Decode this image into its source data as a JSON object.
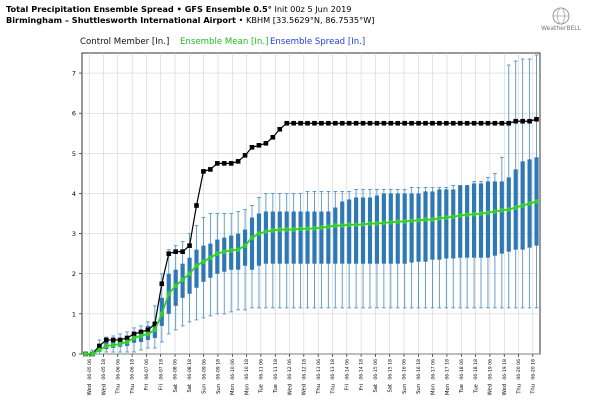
{
  "header": {
    "title_bold": "Total Precipitation Ensemble Spread • GFS Ensemble 0.5°",
    "title_init": "Init 00z 5 Jun 2019",
    "location_bold": "Birmingham – Shuttlesworth International Airport",
    "location_code": "• KBHM [33.5629°N, 86.7535°W]"
  },
  "logo": {
    "text": "WeatherBELL",
    "icon": "globe-logo-icon"
  },
  "legend": {
    "control": "Control Member [In.]",
    "mean": "Ensemble Mean [In.]",
    "spread": "Ensemble Spread [In.]"
  },
  "colors": {
    "control": "#000000",
    "mean": "#33cc33",
    "box": "#2e78b5",
    "whisker": "#5596c8",
    "grid": "#c8c8c8"
  },
  "chart_data": {
    "type": "box",
    "ylim": [
      0,
      7.5
    ],
    "yticks": [
      0,
      1,
      2,
      3,
      4,
      5,
      6,
      7
    ],
    "xticks": [
      "06-05 06",
      "06-05 18",
      "06-06 06",
      "06-06 18",
      "06-07 06",
      "06-07 18",
      "06-08 06",
      "06-08 18",
      "06-09 06",
      "06-09 18",
      "06-10 06",
      "06-10 18",
      "06-11 06",
      "06-11 18",
      "06-12 06",
      "06-12 18",
      "06-13 06",
      "06-13 18",
      "06-14 06",
      "06-14 18",
      "06-15 06",
      "06-15 18",
      "06-16 06",
      "06-16 18",
      "06-17 06",
      "06-17 18",
      "06-18 06",
      "06-18 18",
      "06-19 06",
      "06-19 18",
      "06-20 06",
      "06-20 18"
    ],
    "day_labels": [
      "Wed",
      "Wed",
      "Thu",
      "Thu",
      "Fri",
      "Fri",
      "Sat",
      "Sat",
      "Sun",
      "Sun",
      "Mon",
      "Mon",
      "Tue",
      "Tue",
      "Wed",
      "Wed",
      "Thu",
      "Thu",
      "Fri",
      "Fri",
      "Sat",
      "Sat",
      "Sun",
      "Sun",
      "Mon",
      "Mon",
      "Tue",
      "Tue",
      "Wed",
      "Wed",
      "Thu",
      "Thu"
    ],
    "series": [
      {
        "name": "Control Member [In.]",
        "values": [
          0.0,
          0.0,
          0.2,
          0.35,
          0.35,
          0.35,
          0.4,
          0.5,
          0.55,
          0.6,
          0.75,
          1.75,
          2.5,
          2.55,
          2.55,
          2.7,
          3.7,
          4.55,
          4.6,
          4.75,
          4.75,
          4.75,
          4.8,
          4.95,
          5.15,
          5.2,
          5.25,
          5.4,
          5.6,
          5.75,
          5.75,
          5.75,
          5.75,
          5.75,
          5.75,
          5.75,
          5.75,
          5.75,
          5.75,
          5.75,
          5.75,
          5.75,
          5.75,
          5.75,
          5.75,
          5.75,
          5.75,
          5.75,
          5.75,
          5.75,
          5.75,
          5.75,
          5.75,
          5.75,
          5.75,
          5.75,
          5.75,
          5.75,
          5.75,
          5.75,
          5.75,
          5.75,
          5.8,
          5.8,
          5.8,
          5.85
        ]
      },
      {
        "name": "Ensemble Mean [In.]",
        "values": [
          0.0,
          0.0,
          0.1,
          0.2,
          0.22,
          0.25,
          0.3,
          0.4,
          0.45,
          0.5,
          0.6,
          1.0,
          1.5,
          1.7,
          1.85,
          2.0,
          2.2,
          2.3,
          2.4,
          2.5,
          2.55,
          2.58,
          2.6,
          2.7,
          2.9,
          3.0,
          3.05,
          3.08,
          3.1,
          3.1,
          3.1,
          3.12,
          3.12,
          3.13,
          3.15,
          3.17,
          3.2,
          3.2,
          3.22,
          3.22,
          3.23,
          3.25,
          3.25,
          3.27,
          3.28,
          3.3,
          3.3,
          3.32,
          3.33,
          3.35,
          3.35,
          3.38,
          3.4,
          3.42,
          3.45,
          3.47,
          3.48,
          3.5,
          3.52,
          3.55,
          3.58,
          3.6,
          3.65,
          3.7,
          3.75,
          3.8
        ]
      }
    ],
    "spread": {
      "q1": [
        0.0,
        0.0,
        0.05,
        0.12,
        0.15,
        0.18,
        0.2,
        0.28,
        0.3,
        0.35,
        0.4,
        0.7,
        1.0,
        1.2,
        1.4,
        1.5,
        1.65,
        1.8,
        1.9,
        2.0,
        2.05,
        2.1,
        2.1,
        2.2,
        2.1,
        2.2,
        2.25,
        2.25,
        2.25,
        2.25,
        2.25,
        2.25,
        2.25,
        2.25,
        2.25,
        2.25,
        2.25,
        2.25,
        2.25,
        2.25,
        2.25,
        2.25,
        2.25,
        2.25,
        2.25,
        2.25,
        2.25,
        2.28,
        2.3,
        2.3,
        2.35,
        2.35,
        2.38,
        2.38,
        2.4,
        2.4,
        2.4,
        2.4,
        2.4,
        2.45,
        2.5,
        2.55,
        2.6,
        2.6,
        2.65,
        2.7
      ],
      "q3": [
        0.02,
        0.05,
        0.18,
        0.3,
        0.32,
        0.35,
        0.42,
        0.55,
        0.6,
        0.7,
        0.8,
        1.4,
        2.0,
        2.1,
        2.25,
        2.4,
        2.6,
        2.7,
        2.75,
        2.85,
        2.9,
        2.95,
        3.0,
        3.1,
        3.4,
        3.5,
        3.55,
        3.55,
        3.55,
        3.55,
        3.55,
        3.55,
        3.55,
        3.55,
        3.55,
        3.55,
        3.65,
        3.8,
        3.85,
        3.9,
        3.9,
        3.9,
        3.95,
        4.0,
        4.0,
        4.0,
        4.0,
        4.0,
        4.0,
        4.05,
        4.05,
        4.1,
        4.1,
        4.1,
        4.2,
        4.2,
        4.25,
        4.25,
        4.3,
        4.3,
        4.3,
        4.4,
        4.6,
        4.8,
        4.85,
        4.9
      ],
      "min": [
        0.0,
        0.0,
        0.0,
        0.05,
        0.05,
        0.05,
        0.05,
        0.05,
        0.1,
        0.15,
        0.15,
        0.3,
        0.5,
        0.6,
        0.7,
        0.8,
        0.85,
        0.9,
        0.95,
        1.0,
        1.0,
        1.05,
        1.1,
        1.1,
        1.15,
        1.15,
        1.15,
        1.15,
        1.15,
        1.15,
        1.15,
        1.15,
        1.15,
        1.15,
        1.15,
        1.15,
        1.15,
        1.15,
        1.15,
        1.15,
        1.15,
        1.15,
        1.15,
        1.15,
        1.15,
        1.15,
        1.15,
        1.15,
        1.15,
        1.15,
        1.15,
        1.15,
        1.15,
        1.15,
        1.15,
        1.15,
        1.15,
        1.15,
        1.15,
        1.15,
        1.15,
        1.15,
        1.15,
        1.15,
        1.15,
        1.15
      ],
      "max": [
        0.05,
        0.1,
        0.35,
        0.42,
        0.45,
        0.5,
        0.55,
        0.65,
        0.7,
        0.8,
        1.2,
        2.0,
        2.6,
        2.7,
        2.8,
        3.0,
        3.2,
        3.4,
        3.5,
        3.5,
        3.5,
        3.5,
        3.55,
        3.6,
        3.7,
        3.9,
        4.0,
        4.0,
        4.0,
        4.0,
        4.0,
        4.0,
        4.05,
        4.05,
        4.05,
        4.05,
        4.05,
        4.05,
        4.05,
        4.1,
        4.1,
        4.1,
        4.1,
        4.1,
        4.1,
        4.1,
        4.1,
        4.15,
        4.15,
        4.15,
        4.15,
        4.15,
        4.15,
        4.2,
        4.2,
        4.2,
        4.3,
        4.3,
        4.4,
        4.5,
        4.9,
        7.2,
        7.3,
        7.35,
        7.35,
        7.45
      ]
    }
  }
}
